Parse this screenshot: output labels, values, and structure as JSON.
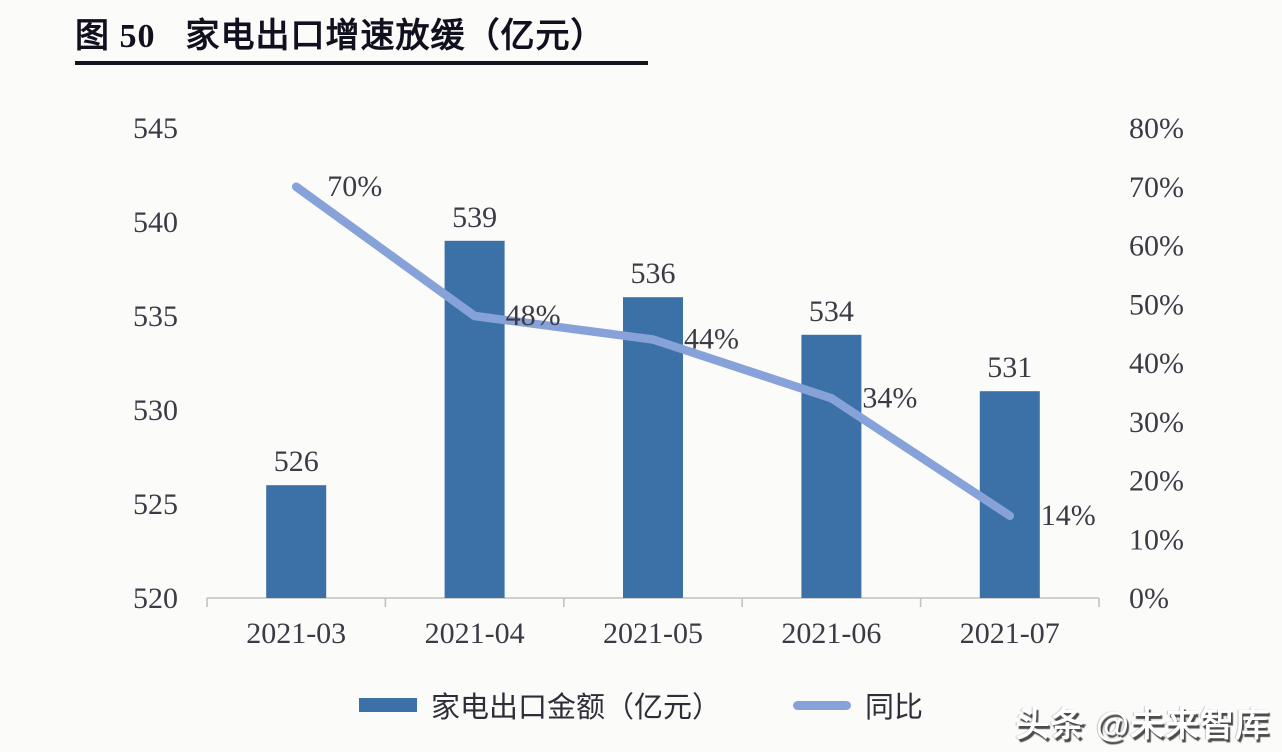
{
  "title": {
    "prefix": "图 50",
    "text": "家电出口增速放缓（亿元）"
  },
  "watermark": "头条 @未来智库",
  "colors": {
    "bar": "#3c71a8",
    "line": "#87a2d8",
    "axis_line": "#c2c2c2",
    "label_text": "#35353f",
    "tick_text": "#3b3b45"
  },
  "legend": {
    "items": [
      {
        "swatch": "bar-swatch",
        "label": "家电出口金额（亿元）"
      },
      {
        "swatch": "line-swatch",
        "label": "同比"
      }
    ]
  },
  "chart_data": {
    "type": "combo-bar-line",
    "categories": [
      "2021-03",
      "2021-04",
      "2021-05",
      "2021-06",
      "2021-07"
    ],
    "series": [
      {
        "name": "家电出口金额（亿元）",
        "type": "bar",
        "axis": "left",
        "values": [
          526,
          539,
          536,
          534,
          531
        ],
        "labels": [
          "526",
          "539",
          "536",
          "534",
          "531"
        ]
      },
      {
        "name": "同比",
        "type": "line",
        "axis": "right",
        "values": [
          70,
          48,
          44,
          34,
          14
        ],
        "labels": [
          "70%",
          "48%",
          "44%",
          "34%",
          "14%"
        ]
      }
    ],
    "left_axis": {
      "min": 520,
      "max": 545,
      "step": 5,
      "tick_labels": [
        "520",
        "525",
        "530",
        "535",
        "540",
        "545"
      ]
    },
    "right_axis": {
      "min": 0,
      "max": 80,
      "step": 10,
      "tick_labels": [
        "0%",
        "10%",
        "20%",
        "30%",
        "40%",
        "50%",
        "60%",
        "70%",
        "80%"
      ]
    },
    "grid": false,
    "legend_position": "bottom",
    "title": "家电出口增速放缓（亿元）"
  }
}
